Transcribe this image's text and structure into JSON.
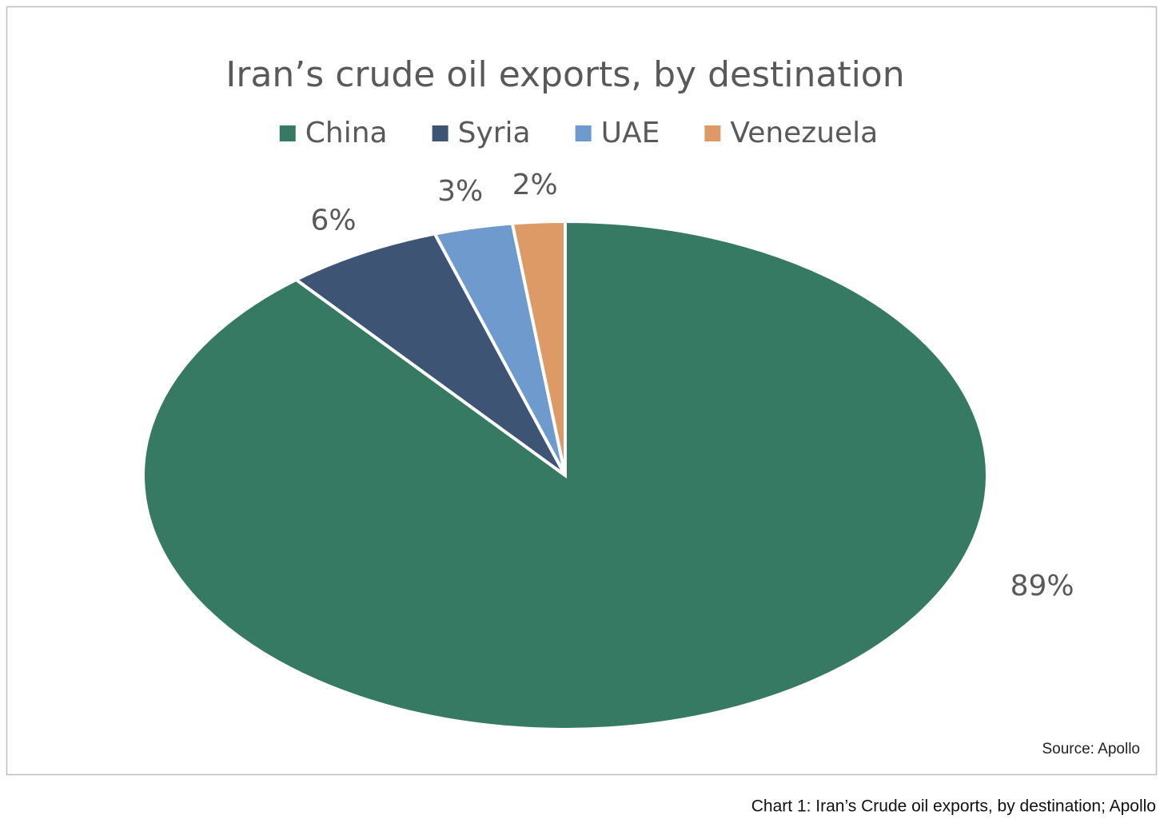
{
  "chart_data": {
    "type": "pie",
    "title": "Iran’s crude oil exports, by destination",
    "categories": [
      "China",
      "Syria",
      "UAE",
      "Venezuela"
    ],
    "values": [
      89,
      6,
      3,
      2
    ],
    "value_labels": [
      "89%",
      "6%",
      "3%",
      "2%"
    ],
    "colors": [
      "#367a63",
      "#3d5474",
      "#6f9acd",
      "#dd9a66"
    ],
    "legend": "top",
    "source": "Source: Apollo"
  },
  "caption": "Chart 1: Iran’s Crude oil exports, by destination; Apollo"
}
